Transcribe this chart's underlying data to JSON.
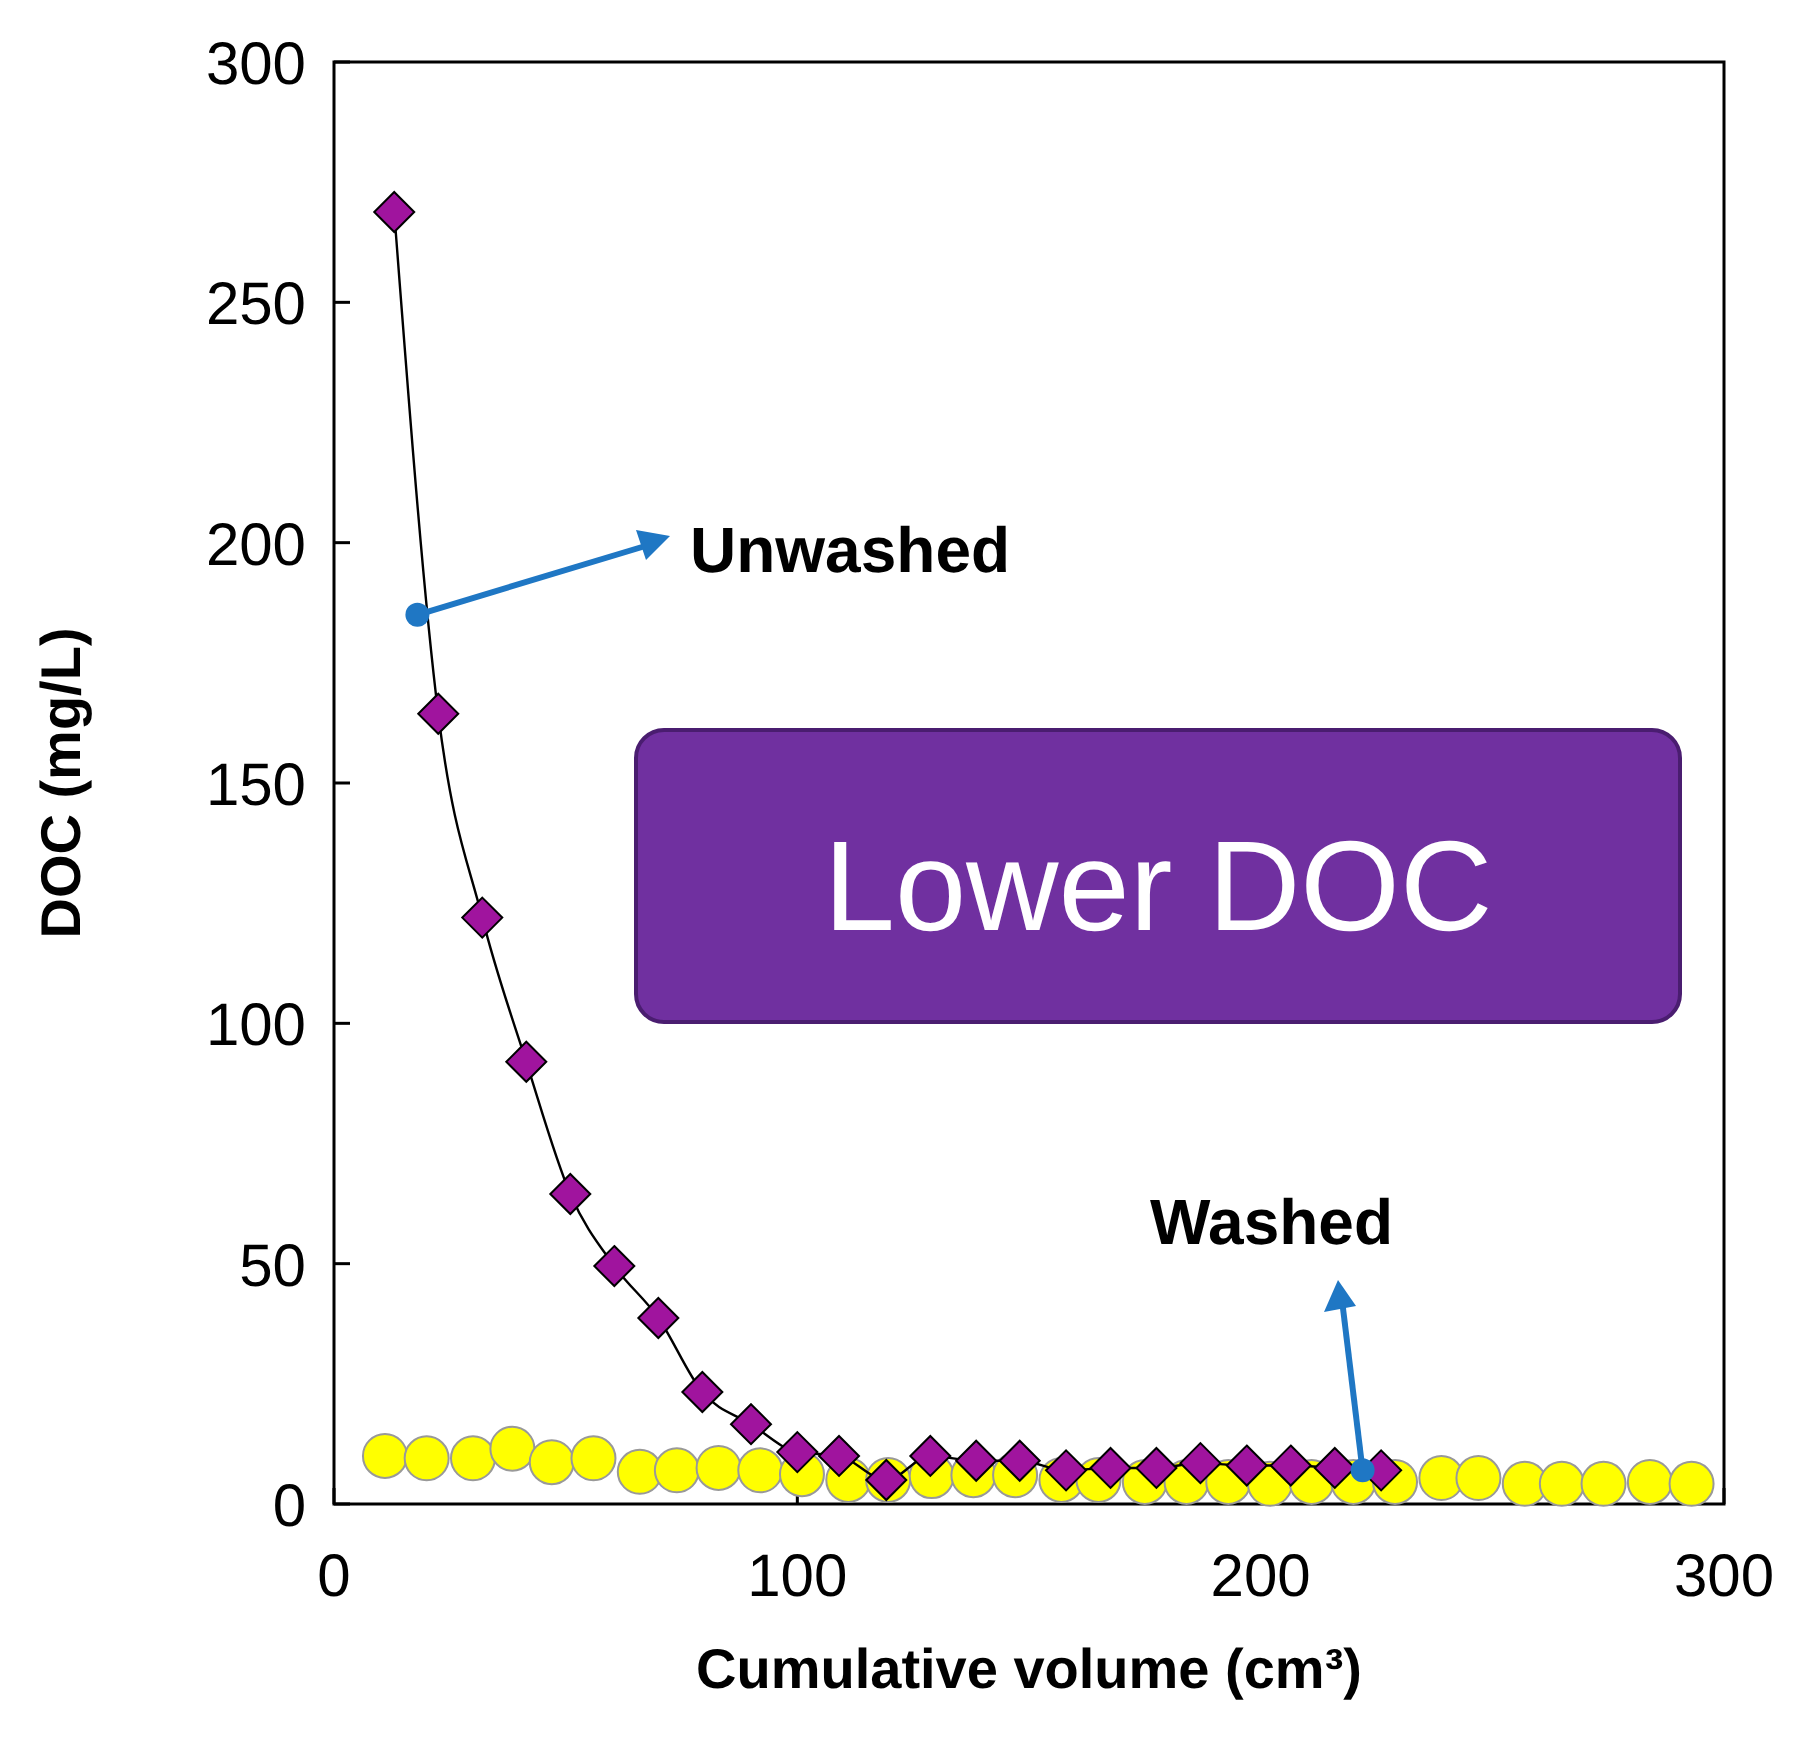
{
  "chart_data": {
    "type": "scatter",
    "xlabel": "Cumulative volume (cm³)",
    "ylabel": "DOC (mg/L)",
    "xlim": [
      0,
      300
    ],
    "ylim": [
      0,
      300
    ],
    "xticks": [
      0,
      100,
      200,
      300
    ],
    "yticks": [
      0,
      50,
      100,
      150,
      200,
      250,
      300
    ],
    "grid": false,
    "annotations": [
      {
        "text": "Unwashed",
        "x": 18,
        "y": 185
      },
      {
        "text": "Washed",
        "x": 222,
        "y": 7
      },
      "Lower DOC"
    ],
    "series": [
      {
        "marker": "circle",
        "color": "#ffff00",
        "x": [
          11,
          20,
          30,
          38.5,
          47,
          56,
          66,
          74,
          83,
          92,
          101,
          111,
          119.6,
          129,
          138,
          147,
          157,
          165,
          175,
          184,
          193,
          202,
          211,
          220,
          229,
          239,
          247,
          257,
          265,
          274,
          284,
          293
        ],
        "values": [
          10,
          9.5,
          9.5,
          11.5,
          8.7,
          9.5,
          6.7,
          7,
          7.5,
          7,
          6.2,
          5,
          5,
          5.8,
          6,
          6,
          5,
          5,
          4.6,
          4.6,
          4.6,
          4.2,
          4.6,
          4.6,
          4.6,
          5.4,
          5.4,
          4.2,
          4.2,
          4.2,
          4.6,
          4.2
        ]
      },
      {
        "type": "line",
        "marker": "diamond",
        "color": "#a0149e",
        "x": [
          13,
          22.5,
          32,
          41.5,
          51,
          60.5,
          70,
          79.5,
          90,
          100,
          109,
          119.2,
          128.7,
          138.6,
          148,
          158,
          167.6,
          177.5,
          187,
          197,
          206.5,
          216,
          226
        ],
        "values": [
          268.8,
          164.4,
          122,
          92,
          64.5,
          49.5,
          38.7,
          23.3,
          16.6,
          10.8,
          10,
          5,
          10,
          9,
          9,
          7,
          7.5,
          7.5,
          8.5,
          8,
          8,
          7.5,
          7
        ]
      }
    ]
  }
}
